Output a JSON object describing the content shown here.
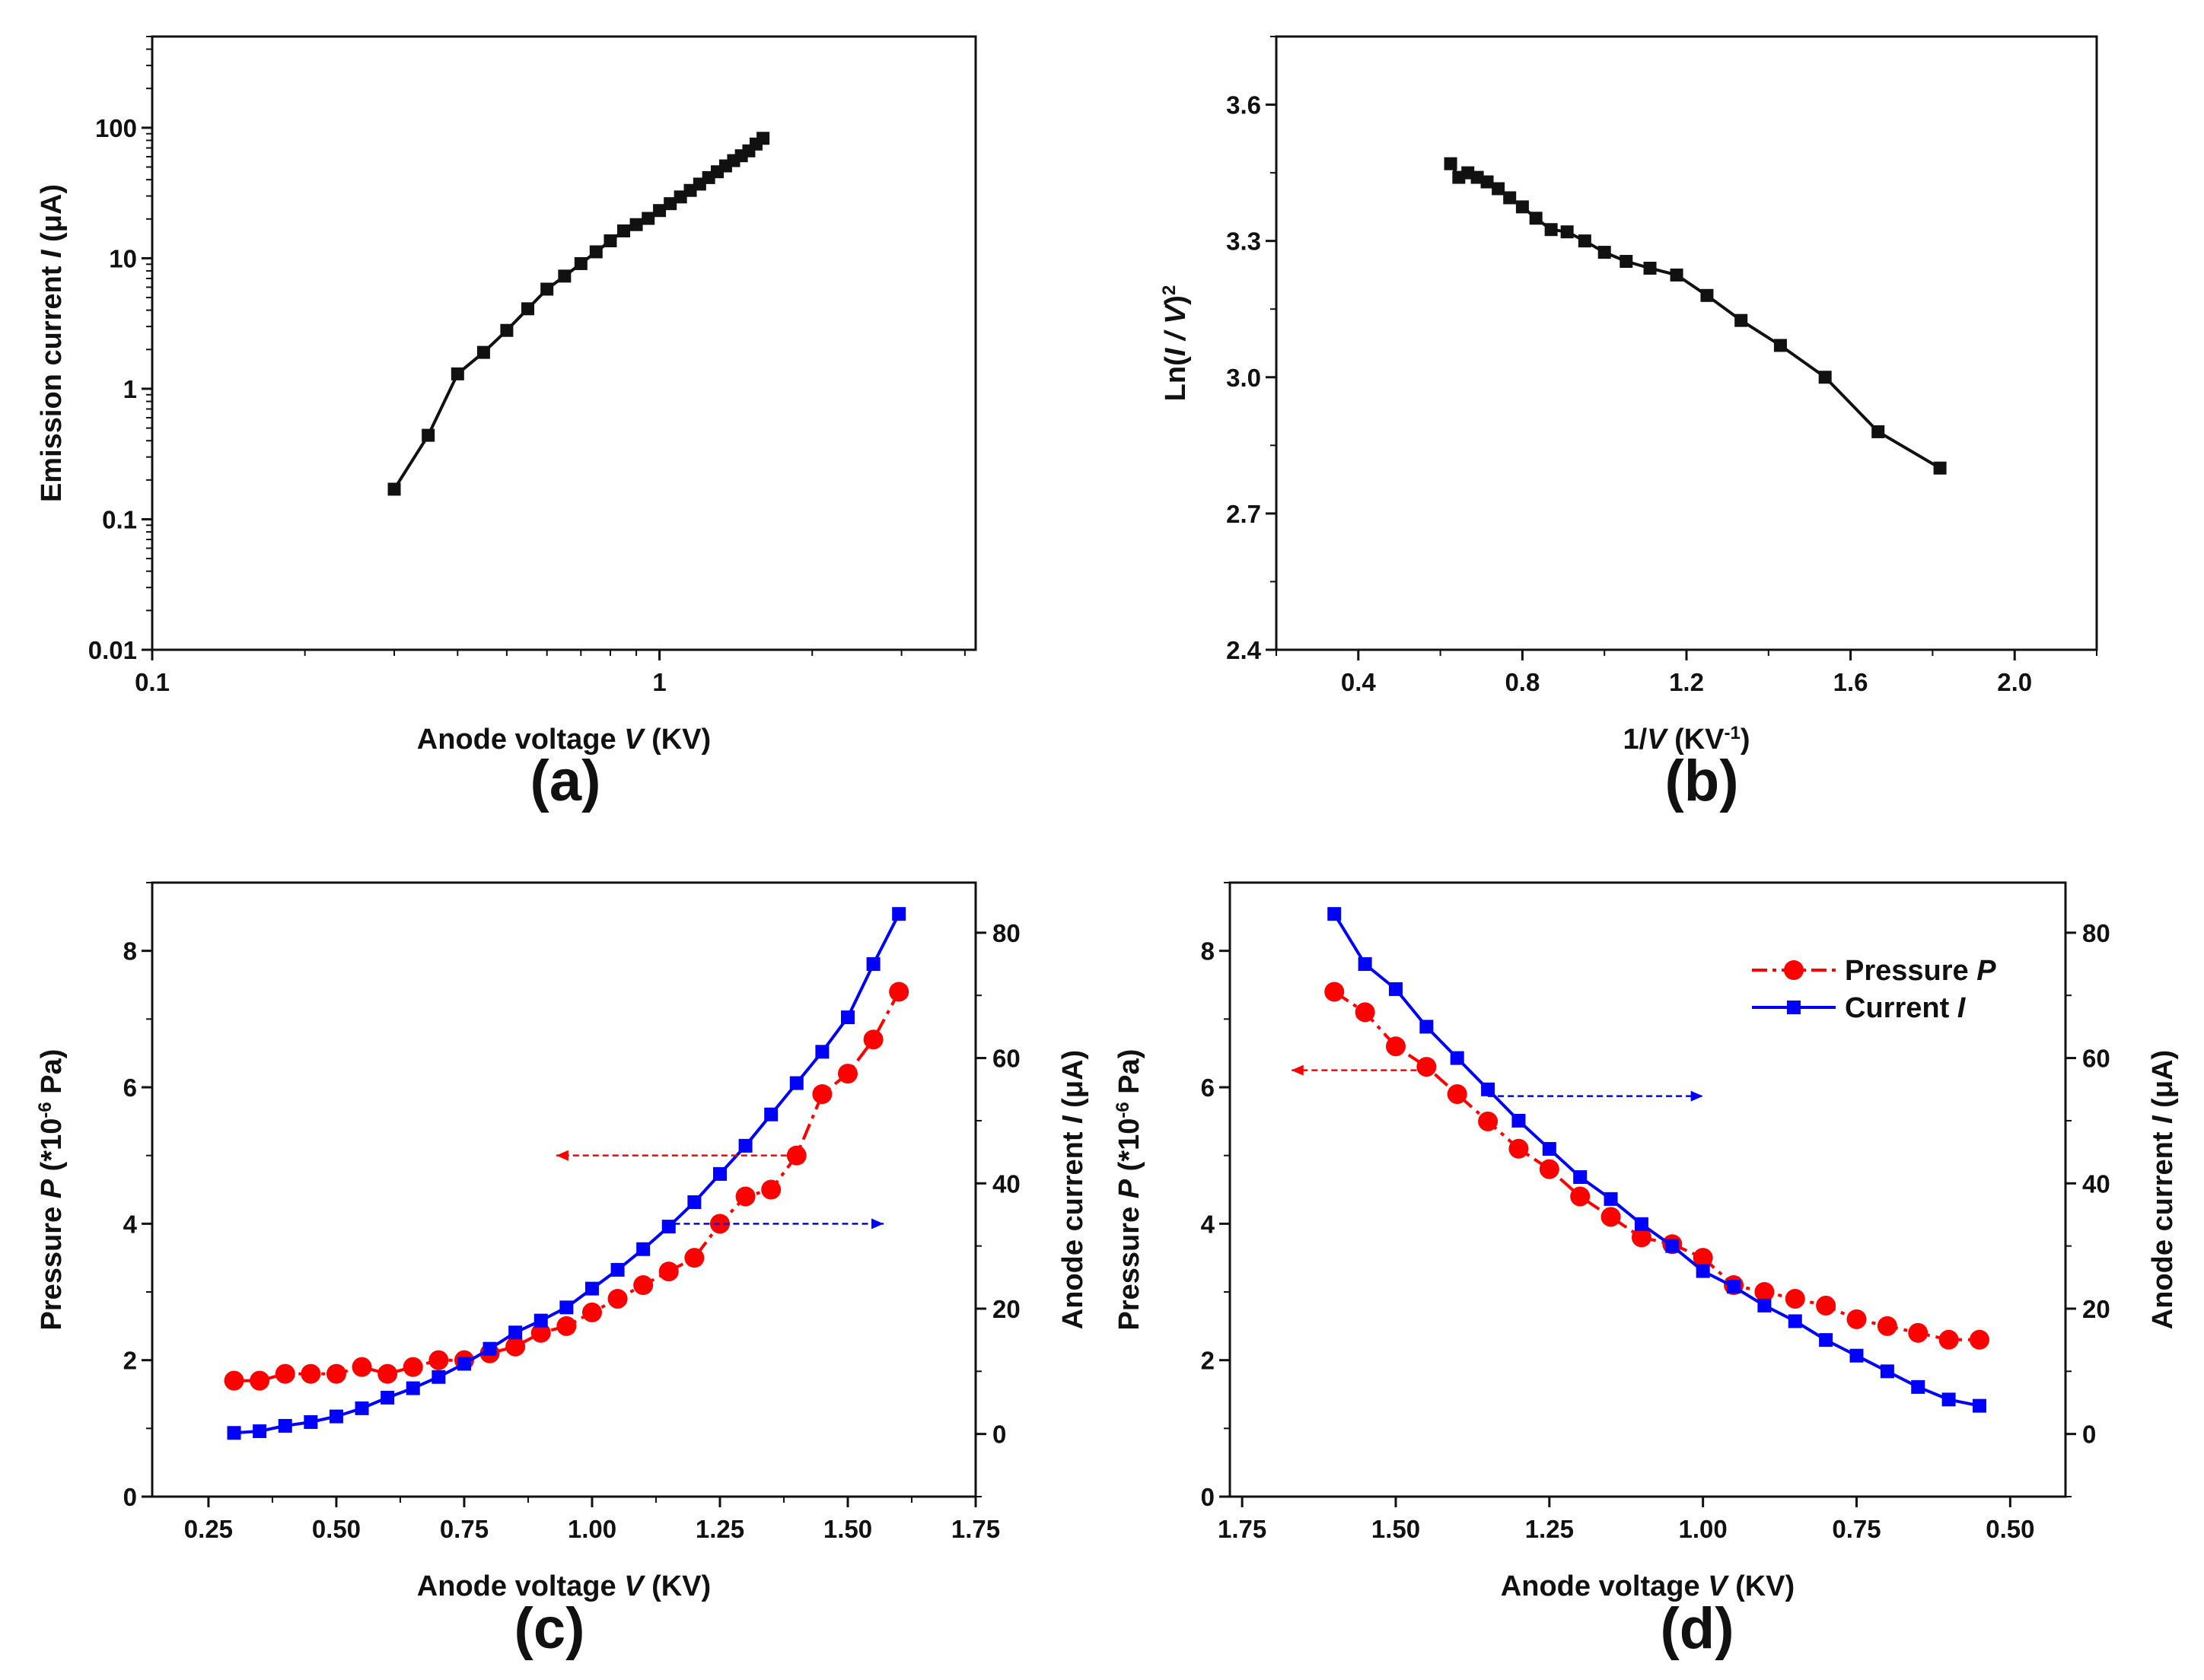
{
  "colors": {
    "black": "#111111",
    "red": "#ff0000",
    "blue": "#0000ff"
  },
  "chart_data": [
    {
      "panel": "(a)",
      "type": "line",
      "xscale": "log",
      "yscale": "log",
      "xlim": [
        0.1,
        4.2
      ],
      "ylim": [
        0.01,
        500
      ],
      "xticks": [
        "0.1",
        "1"
      ],
      "yticks": [
        "0.01",
        "0.1",
        "1",
        "10",
        "100"
      ],
      "xlabel": {
        "pre": "Anode voltage ",
        "var": "V",
        "post": " (KV)"
      },
      "ylabel": {
        "pre": "Emission current ",
        "var": "I",
        "post": " (μA)"
      },
      "series": [
        {
          "marker": "square",
          "color": "#111111",
          "x": [
            0.3,
            0.35,
            0.4,
            0.45,
            0.5,
            0.55,
            0.6,
            0.65,
            0.7,
            0.75,
            0.8,
            0.85,
            0.9,
            0.95,
            1.0,
            1.05,
            1.1,
            1.15,
            1.2,
            1.25,
            1.3,
            1.35,
            1.4,
            1.45,
            1.5,
            1.55,
            1.6
          ],
          "y": [
            0.17,
            0.44,
            1.3,
            1.9,
            2.8,
            4.1,
            5.8,
            7.3,
            9.1,
            11.2,
            13.6,
            16.2,
            18.1,
            20.2,
            23.2,
            26.2,
            29.5,
            33.1,
            37,
            41.5,
            46,
            51,
            56,
            61,
            66.5,
            75,
            83
          ]
        }
      ]
    },
    {
      "panel": "(b)",
      "type": "line",
      "xlim": [
        0.2,
        2.2
      ],
      "ylim": [
        2.4,
        3.75
      ],
      "xticks": [
        "0.4",
        "0.8",
        "1.2",
        "1.6",
        "2.0"
      ],
      "yticks": [
        "2.4",
        "2.7",
        "3.0",
        "3.3",
        "3.6"
      ],
      "xlabel": {
        "pre": "1/",
        "var": "V",
        "post": " (KV",
        "sup": "-1",
        "close": ")"
      },
      "ylabel": {
        "pre": "Ln(",
        "var": "I / V",
        "sup": "2",
        "post": ")"
      },
      "series": [
        {
          "marker": "square",
          "color": "#111111",
          "x": [
            0.625,
            0.645,
            0.667,
            0.69,
            0.714,
            0.741,
            0.769,
            0.8,
            0.833,
            0.87,
            0.909,
            0.952,
            1.0,
            1.053,
            1.111,
            1.176,
            1.25,
            1.333,
            1.429,
            1.538,
            1.667,
            1.818
          ],
          "y": [
            3.47,
            3.44,
            3.45,
            3.44,
            3.43,
            3.415,
            3.395,
            3.375,
            3.35,
            3.325,
            3.32,
            3.3,
            3.275,
            3.255,
            3.24,
            3.225,
            3.18,
            3.125,
            3.07,
            3.0,
            2.88,
            2.8
          ]
        }
      ]
    },
    {
      "panel": "(c)",
      "type": "line",
      "xlim": [
        0.14,
        1.75
      ],
      "ylim": [
        0,
        9
      ],
      "y2lim": [
        -10,
        88
      ],
      "xticks": [
        "0.25",
        "0.50",
        "0.75",
        "1.00",
        "1.25",
        "1.50",
        "1.75"
      ],
      "yticks": [
        "0",
        "2",
        "4",
        "6",
        "8"
      ],
      "y2ticks": [
        "0",
        "20",
        "40",
        "60",
        "80"
      ],
      "xlabel": {
        "pre": "Anode voltage ",
        "var": "V",
        "post": " (KV)"
      },
      "ylabel": {
        "pre": "Pressure ",
        "var": "P",
        "post": " (*10",
        "sup": "-6",
        "close": " Pa)"
      },
      "y2label": {
        "pre": "Anode current ",
        "var": "I",
        "post": " (μA)"
      },
      "arrows": [
        {
          "from": [
            1.4,
            5.0
          ],
          "to": [
            0.93,
            5.0
          ],
          "color": "#ff0000"
        },
        {
          "from": [
            1.16,
            4.0
          ],
          "to": [
            1.57,
            4.0
          ],
          "color": "#0000ff"
        }
      ],
      "series": [
        {
          "axis": "left",
          "marker": "circle",
          "color": "#ff0000",
          "dash": true,
          "x": [
            0.3,
            0.35,
            0.4,
            0.45,
            0.5,
            0.55,
            0.6,
            0.65,
            0.7,
            0.75,
            0.8,
            0.85,
            0.9,
            0.95,
            1.0,
            1.05,
            1.1,
            1.15,
            1.2,
            1.25,
            1.3,
            1.35,
            1.4,
            1.45,
            1.5,
            1.55,
            1.6
          ],
          "y": [
            1.7,
            1.7,
            1.8,
            1.8,
            1.8,
            1.9,
            1.8,
            1.9,
            2.0,
            2.0,
            2.1,
            2.2,
            2.4,
            2.5,
            2.7,
            2.9,
            3.1,
            3.3,
            3.5,
            4.0,
            4.4,
            4.5,
            5.0,
            5.9,
            6.2,
            6.7,
            7.4
          ]
        },
        {
          "axis": "right",
          "marker": "square",
          "color": "#0000ff",
          "dash": false,
          "x": [
            0.3,
            0.35,
            0.4,
            0.45,
            0.5,
            0.55,
            0.6,
            0.65,
            0.7,
            0.75,
            0.8,
            0.85,
            0.9,
            0.95,
            1.0,
            1.05,
            1.1,
            1.15,
            1.2,
            1.25,
            1.3,
            1.35,
            1.4,
            1.45,
            1.5,
            1.55,
            1.6
          ],
          "y": [
            0.17,
            0.44,
            1.3,
            1.9,
            2.8,
            4.1,
            5.8,
            7.3,
            9.1,
            11.2,
            13.6,
            16.2,
            18.1,
            20.2,
            23.2,
            26.2,
            29.5,
            33.1,
            37,
            41.5,
            46,
            51,
            56,
            61,
            66.5,
            75,
            83
          ]
        }
      ]
    },
    {
      "panel": "(d)",
      "type": "line",
      "xreversed": true,
      "xlim": [
        1.77,
        0.41
      ],
      "ylim": [
        0,
        9
      ],
      "y2lim": [
        -10,
        88
      ],
      "xticks": [
        "1.75",
        "1.50",
        "1.25",
        "1.00",
        "0.75",
        "0.50"
      ],
      "yticks": [
        "0",
        "2",
        "4",
        "6",
        "8"
      ],
      "y2ticks": [
        "0",
        "20",
        "40",
        "60",
        "80"
      ],
      "xlabel": {
        "pre": "Anode voltage ",
        "var": "V",
        "post": " (KV)"
      },
      "ylabel": {
        "pre": "Pressure ",
        "var": "P",
        "post": " (*10",
        "sup": "-6",
        "close": " Pa)"
      },
      "y2label": {
        "pre": "Anode current ",
        "var": "I",
        "post": " (μA)"
      },
      "legend": {
        "position": "top-right",
        "entries": [
          {
            "pre": "Pressure ",
            "var": "P"
          },
          {
            "pre": "Current ",
            "var": "I"
          }
        ]
      },
      "arrows": [
        {
          "from": [
            1.45,
            6.25
          ],
          "to": [
            1.67,
            6.25
          ],
          "color": "#ff0000"
        },
        {
          "from": [
            1.35,
            5.87
          ],
          "to": [
            1.0,
            5.87
          ],
          "color": "#0000ff"
        }
      ],
      "series": [
        {
          "axis": "left",
          "marker": "circle",
          "color": "#ff0000",
          "dash": true,
          "x": [
            1.6,
            1.55,
            1.5,
            1.45,
            1.4,
            1.35,
            1.3,
            1.25,
            1.2,
            1.15,
            1.1,
            1.05,
            1.0,
            0.95,
            0.9,
            0.85,
            0.8,
            0.75,
            0.7,
            0.65,
            0.6,
            0.55
          ],
          "y": [
            7.4,
            7.1,
            6.6,
            6.3,
            5.9,
            5.5,
            5.1,
            4.8,
            4.4,
            4.1,
            3.8,
            3.7,
            3.5,
            3.1,
            3.0,
            2.9,
            2.8,
            2.6,
            2.5,
            2.4,
            2.3,
            2.3
          ]
        },
        {
          "axis": "right",
          "marker": "square",
          "color": "#0000ff",
          "dash": false,
          "x": [
            1.6,
            1.55,
            1.5,
            1.45,
            1.4,
            1.35,
            1.3,
            1.25,
            1.2,
            1.15,
            1.1,
            1.05,
            1.0,
            0.95,
            0.9,
            0.85,
            0.8,
            0.75,
            0.7,
            0.65,
            0.6,
            0.55
          ],
          "y": [
            83,
            75,
            71,
            65,
            60,
            55,
            50,
            45.5,
            41,
            37.5,
            33.5,
            30,
            26,
            23.5,
            20.5,
            18,
            15,
            12.5,
            10,
            7.5,
            5.5,
            4.5
          ]
        }
      ]
    }
  ]
}
